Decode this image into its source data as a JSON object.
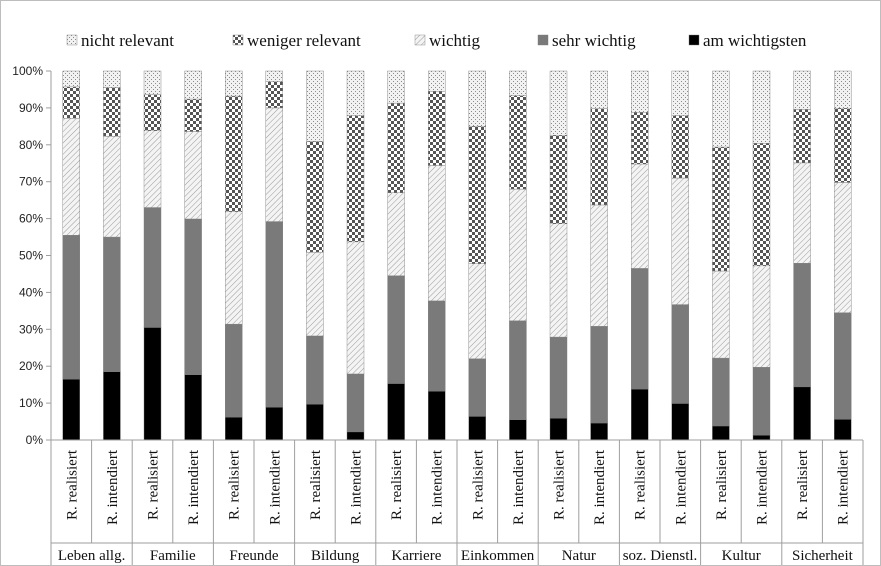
{
  "chart_data": {
    "type": "bar",
    "stacked": true,
    "percent": true,
    "ylim": [
      0,
      100
    ],
    "yticks": [
      "0%",
      "10%",
      "20%",
      "30%",
      "40%",
      "50%",
      "60%",
      "70%",
      "80%",
      "90%",
      "100%"
    ],
    "legend_position": "top",
    "groups": [
      "Leben allg.",
      "Familie",
      "Freunde",
      "Bildung",
      "Karriere",
      "Einkommen",
      "Natur",
      "soz. Dienstl.",
      "Kultur",
      "Sicherheit"
    ],
    "sublabels": [
      "R. realisiert",
      "R. intendiert"
    ],
    "categories": [
      "Leben allg. R. realisiert",
      "Leben allg. R. intendiert",
      "Familie R. realisiert",
      "Familie R. intendiert",
      "Freunde R. realisiert",
      "Freunde R. intendiert",
      "Bildung R. realisiert",
      "Bildung R. intendiert",
      "Karriere R. realisiert",
      "Karriere R. intendiert",
      "Einkommen R. realisiert",
      "Einkommen R. intendiert",
      "Natur R. realisiert",
      "Natur R. intendiert",
      "soz. Dienstl. R. realisiert",
      "soz. Dienstl. R. intendiert",
      "Kultur R. realisiert",
      "Kultur R. intendiert",
      "Sicherheit R. realisiert",
      "Sicherheit R. intendiert"
    ],
    "series": [
      {
        "name": "am wichtigsten",
        "values": [
          16.5,
          18.5,
          30.5,
          17.7,
          6.2,
          8.9,
          9.7,
          2.2,
          15.3,
          13.2,
          6.4,
          5.5,
          5.9,
          4.6,
          13.8,
          9.9,
          3.8,
          1.3,
          14.4,
          5.6
        ]
      },
      {
        "name": "sehr wichtig",
        "values": [
          39.0,
          36.5,
          32.5,
          42.2,
          25.2,
          50.3,
          18.5,
          15.7,
          29.2,
          24.5,
          15.6,
          26.8,
          22.0,
          26.2,
          32.7,
          26.8,
          18.4,
          18.4,
          33.5,
          28.9
        ]
      },
      {
        "name": "wichtig",
        "values": [
          31.7,
          27.3,
          20.8,
          23.7,
          30.5,
          30.8,
          22.7,
          35.8,
          22.5,
          36.7,
          25.8,
          35.7,
          30.7,
          32.9,
          28.3,
          34.3,
          23.6,
          27.5,
          27.2,
          35.3
        ]
      },
      {
        "name": "weniger relevant",
        "values": [
          8.5,
          13.2,
          9.8,
          8.8,
          31.3,
          7.1,
          30.0,
          34.2,
          24.3,
          20.1,
          37.2,
          25.3,
          24.0,
          26.1,
          14.0,
          16.9,
          33.6,
          33.2,
          14.5,
          20.1
        ]
      },
      {
        "name": "nicht relevant",
        "values": [
          4.3,
          4.5,
          6.4,
          7.6,
          6.8,
          2.9,
          19.1,
          12.1,
          8.7,
          5.5,
          15.0,
          6.7,
          17.4,
          10.2,
          11.2,
          12.1,
          20.6,
          19.6,
          10.4,
          10.1
        ]
      }
    ],
    "colors": {
      "am wichtigsten": "#000000",
      "sehr wichtig": "#7a7a7a",
      "wichtig": "#cfcfcf",
      "weniger relevant": "#9a9a9a",
      "nicht relevant": "#d6d6d6"
    }
  }
}
